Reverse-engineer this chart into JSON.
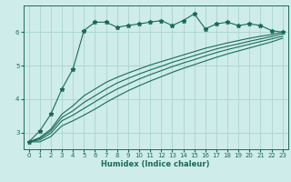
{
  "bg_color": "#ceecea",
  "grid_color": "#aad4d0",
  "line_color": "#1a6b5a",
  "xlabel": "Humidex (Indice chaleur)",
  "xlim": [
    -0.5,
    23.5
  ],
  "ylim": [
    2.5,
    6.8
  ],
  "yticks": [
    3,
    4,
    5,
    6
  ],
  "xticks": [
    0,
    1,
    2,
    3,
    4,
    5,
    6,
    7,
    8,
    9,
    10,
    11,
    12,
    13,
    14,
    15,
    16,
    17,
    18,
    19,
    20,
    21,
    22,
    23
  ],
  "noisy_line": [
    2.72,
    3.05,
    3.55,
    4.3,
    4.9,
    6.05,
    6.3,
    6.3,
    6.15,
    6.2,
    6.25,
    6.3,
    6.35,
    6.2,
    6.35,
    6.55,
    6.1,
    6.25,
    6.3,
    6.2,
    6.25,
    6.2,
    6.05,
    6.0
  ],
  "smooth1": [
    2.72,
    2.85,
    3.1,
    3.55,
    3.8,
    4.1,
    4.3,
    4.5,
    4.65,
    4.78,
    4.9,
    5.02,
    5.12,
    5.22,
    5.32,
    5.42,
    5.52,
    5.6,
    5.68,
    5.75,
    5.82,
    5.88,
    5.93,
    6.0
  ],
  "smooth2": [
    2.72,
    2.82,
    3.05,
    3.45,
    3.65,
    3.9,
    4.1,
    4.3,
    4.48,
    4.62,
    4.75,
    4.87,
    4.98,
    5.1,
    5.2,
    5.3,
    5.4,
    5.5,
    5.58,
    5.65,
    5.73,
    5.8,
    5.87,
    5.95
  ],
  "smooth3": [
    2.72,
    2.78,
    2.98,
    3.35,
    3.52,
    3.72,
    3.92,
    4.12,
    4.3,
    4.45,
    4.6,
    4.73,
    4.85,
    4.97,
    5.08,
    5.18,
    5.29,
    5.39,
    5.48,
    5.56,
    5.64,
    5.72,
    5.8,
    5.88
  ],
  "smooth4": [
    2.72,
    2.72,
    2.88,
    3.2,
    3.35,
    3.52,
    3.7,
    3.9,
    4.08,
    4.25,
    4.4,
    4.54,
    4.67,
    4.8,
    4.92,
    5.03,
    5.14,
    5.25,
    5.35,
    5.44,
    5.53,
    5.62,
    5.71,
    5.82
  ]
}
